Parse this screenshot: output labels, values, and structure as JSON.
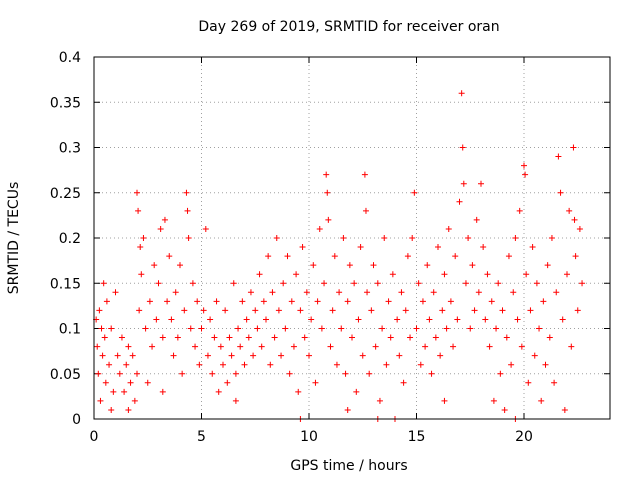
{
  "chart_data": {
    "type": "scatter",
    "title": "Day 269 of 2019, SRMTID for receiver oran",
    "xlabel": "GPS time / hours",
    "ylabel": "SRMTID / TECUs",
    "xlim": [
      0,
      24
    ],
    "ylim": [
      0,
      0.4
    ],
    "xticks": [
      0,
      5,
      10,
      15,
      20
    ],
    "xtick_labels": [
      "0",
      "5",
      "10",
      "15",
      "20"
    ],
    "yticks": [
      0,
      0.05,
      0.1,
      0.15,
      0.2,
      0.25,
      0.3,
      0.35,
      0.4
    ],
    "ytick_labels": [
      "0",
      "0.05",
      "0.1",
      "0.15",
      "0.2",
      "0.25",
      "0.3",
      "0.35",
      "0.4"
    ],
    "grid": true,
    "marker": "+",
    "color": "#ff0000",
    "series": [
      {
        "name": "SRMTID",
        "points": [
          [
            0.1,
            0.11
          ],
          [
            0.15,
            0.08
          ],
          [
            0.2,
            0.05
          ],
          [
            0.25,
            0.12
          ],
          [
            0.3,
            0.02
          ],
          [
            0.35,
            0.1
          ],
          [
            0.4,
            0.07
          ],
          [
            0.45,
            0.15
          ],
          [
            0.5,
            0.09
          ],
          [
            0.55,
            0.04
          ],
          [
            0.6,
            0.13
          ],
          [
            0.7,
            0.06
          ],
          [
            0.8,
            0.1
          ],
          [
            0.9,
            0.03
          ],
          [
            1.0,
            0.14
          ],
          [
            1.1,
            0.07
          ],
          [
            1.2,
            0.05
          ],
          [
            1.3,
            0.09
          ],
          [
            1.4,
            0.03
          ],
          [
            1.5,
            0.06
          ],
          [
            1.6,
            0.08
          ],
          [
            1.7,
            0.04
          ],
          [
            1.8,
            0.07
          ],
          [
            1.9,
            0.02
          ],
          [
            2.0,
            0.05
          ],
          [
            2.0,
            0.25
          ],
          [
            2.05,
            0.23
          ],
          [
            2.1,
            0.12
          ],
          [
            2.15,
            0.19
          ],
          [
            2.2,
            0.16
          ],
          [
            2.3,
            0.2
          ],
          [
            2.4,
            0.1
          ],
          [
            2.5,
            0.04
          ],
          [
            2.6,
            0.13
          ],
          [
            2.7,
            0.08
          ],
          [
            2.8,
            0.17
          ],
          [
            2.9,
            0.11
          ],
          [
            3.0,
            0.15
          ],
          [
            3.1,
            0.21
          ],
          [
            3.2,
            0.09
          ],
          [
            3.3,
            0.22
          ],
          [
            3.4,
            0.13
          ],
          [
            3.5,
            0.18
          ],
          [
            3.6,
            0.11
          ],
          [
            3.7,
            0.07
          ],
          [
            3.8,
            0.14
          ],
          [
            3.9,
            0.09
          ],
          [
            4.0,
            0.17
          ],
          [
            4.1,
            0.05
          ],
          [
            4.2,
            0.12
          ],
          [
            4.3,
            0.25
          ],
          [
            4.35,
            0.23
          ],
          [
            4.4,
            0.2
          ],
          [
            4.5,
            0.1
          ],
          [
            4.6,
            0.15
          ],
          [
            4.7,
            0.08
          ],
          [
            4.8,
            0.13
          ],
          [
            4.9,
            0.06
          ],
          [
            5.0,
            0.1
          ],
          [
            5.1,
            0.12
          ],
          [
            5.2,
            0.21
          ],
          [
            5.3,
            0.07
          ],
          [
            5.4,
            0.11
          ],
          [
            5.5,
            0.05
          ],
          [
            5.6,
            0.09
          ],
          [
            5.7,
            0.13
          ],
          [
            5.8,
            0.03
          ],
          [
            5.9,
            0.08
          ],
          [
            6.0,
            0.06
          ],
          [
            6.1,
            0.12
          ],
          [
            6.2,
            0.04
          ],
          [
            6.3,
            0.09
          ],
          [
            6.4,
            0.07
          ],
          [
            6.5,
            0.15
          ],
          [
            6.6,
            0.05
          ],
          [
            6.7,
            0.1
          ],
          [
            6.8,
            0.08
          ],
          [
            6.9,
            0.13
          ],
          [
            7.0,
            0.06
          ],
          [
            7.1,
            0.11
          ],
          [
            7.2,
            0.09
          ],
          [
            7.3,
            0.14
          ],
          [
            7.4,
            0.07
          ],
          [
            7.5,
            0.12
          ],
          [
            7.6,
            0.1
          ],
          [
            7.7,
            0.16
          ],
          [
            7.8,
            0.08
          ],
          [
            7.9,
            0.13
          ],
          [
            8.0,
            0.11
          ],
          [
            8.1,
            0.18
          ],
          [
            8.2,
            0.06
          ],
          [
            8.3,
            0.14
          ],
          [
            8.4,
            0.09
          ],
          [
            8.5,
            0.2
          ],
          [
            8.6,
            0.12
          ],
          [
            8.7,
            0.07
          ],
          [
            8.8,
            0.15
          ],
          [
            8.9,
            0.1
          ],
          [
            9.0,
            0.18
          ],
          [
            9.1,
            0.05
          ],
          [
            9.2,
            0.13
          ],
          [
            9.3,
            0.08
          ],
          [
            9.4,
            0.16
          ],
          [
            9.5,
            0.03
          ],
          [
            9.6,
            0.12
          ],
          [
            9.7,
            0.19
          ],
          [
            9.8,
            0.09
          ],
          [
            9.9,
            0.14
          ],
          [
            10.0,
            0.07
          ],
          [
            10.1,
            0.11
          ],
          [
            10.2,
            0.17
          ],
          [
            10.3,
            0.04
          ],
          [
            10.4,
            0.13
          ],
          [
            10.5,
            0.21
          ],
          [
            10.6,
            0.1
          ],
          [
            10.7,
            0.15
          ],
          [
            10.8,
            0.27
          ],
          [
            10.85,
            0.25
          ],
          [
            10.9,
            0.22
          ],
          [
            11.0,
            0.08
          ],
          [
            11.1,
            0.12
          ],
          [
            11.2,
            0.18
          ],
          [
            11.3,
            0.06
          ],
          [
            11.4,
            0.14
          ],
          [
            11.5,
            0.1
          ],
          [
            11.6,
            0.2
          ],
          [
            11.7,
            0.05
          ],
          [
            11.8,
            0.13
          ],
          [
            11.9,
            0.17
          ],
          [
            12.0,
            0.09
          ],
          [
            12.1,
            0.15
          ],
          [
            12.2,
            0.03
          ],
          [
            12.3,
            0.11
          ],
          [
            12.4,
            0.19
          ],
          [
            12.5,
            0.07
          ],
          [
            12.6,
            0.27
          ],
          [
            12.65,
            0.23
          ],
          [
            12.7,
            0.14
          ],
          [
            12.8,
            0.05
          ],
          [
            12.9,
            0.12
          ],
          [
            13.0,
            0.17
          ],
          [
            13.1,
            0.08
          ],
          [
            13.2,
            0.15
          ],
          [
            13.3,
            0.02
          ],
          [
            13.4,
            0.1
          ],
          [
            13.5,
            0.2
          ],
          [
            13.6,
            0.06
          ],
          [
            13.7,
            0.13
          ],
          [
            13.8,
            0.09
          ],
          [
            13.9,
            0.16
          ],
          [
            14.0,
            0.0
          ],
          [
            14.1,
            0.11
          ],
          [
            14.2,
            0.07
          ],
          [
            14.3,
            0.14
          ],
          [
            14.4,
            0.04
          ],
          [
            14.5,
            0.12
          ],
          [
            14.6,
            0.18
          ],
          [
            14.7,
            0.09
          ],
          [
            14.8,
            0.2
          ],
          [
            14.9,
            0.25
          ],
          [
            15.0,
            0.1
          ],
          [
            15.1,
            0.15
          ],
          [
            15.2,
            0.06
          ],
          [
            15.3,
            0.13
          ],
          [
            15.4,
            0.08
          ],
          [
            15.5,
            0.17
          ],
          [
            15.6,
            0.11
          ],
          [
            15.7,
            0.05
          ],
          [
            15.8,
            0.14
          ],
          [
            15.9,
            0.09
          ],
          [
            16.0,
            0.19
          ],
          [
            16.1,
            0.07
          ],
          [
            16.2,
            0.12
          ],
          [
            16.3,
            0.16
          ],
          [
            16.4,
            0.1
          ],
          [
            16.5,
            0.21
          ],
          [
            16.6,
            0.13
          ],
          [
            16.7,
            0.08
          ],
          [
            16.8,
            0.18
          ],
          [
            16.9,
            0.11
          ],
          [
            17.0,
            0.24
          ],
          [
            17.1,
            0.36
          ],
          [
            17.15,
            0.3
          ],
          [
            17.2,
            0.26
          ],
          [
            17.3,
            0.15
          ],
          [
            17.4,
            0.2
          ],
          [
            17.5,
            0.1
          ],
          [
            17.6,
            0.17
          ],
          [
            17.7,
            0.12
          ],
          [
            17.8,
            0.22
          ],
          [
            17.9,
            0.14
          ],
          [
            18.0,
            0.26
          ],
          [
            18.1,
            0.19
          ],
          [
            18.2,
            0.11
          ],
          [
            18.3,
            0.16
          ],
          [
            18.4,
            0.08
          ],
          [
            18.5,
            0.13
          ],
          [
            18.6,
            0.02
          ],
          [
            18.7,
            0.1
          ],
          [
            18.8,
            0.15
          ],
          [
            18.9,
            0.05
          ],
          [
            19.0,
            0.12
          ],
          [
            19.1,
            0.01
          ],
          [
            19.2,
            0.09
          ],
          [
            19.3,
            0.18
          ],
          [
            19.4,
            0.06
          ],
          [
            19.5,
            0.14
          ],
          [
            19.6,
            0.2
          ],
          [
            19.7,
            0.11
          ],
          [
            19.8,
            0.23
          ],
          [
            19.9,
            0.08
          ],
          [
            20.0,
            0.28
          ],
          [
            20.05,
            0.27
          ],
          [
            20.1,
            0.16
          ],
          [
            20.2,
            0.04
          ],
          [
            20.3,
            0.12
          ],
          [
            20.4,
            0.19
          ],
          [
            20.5,
            0.07
          ],
          [
            20.6,
            0.15
          ],
          [
            20.7,
            0.1
          ],
          [
            20.8,
            0.02
          ],
          [
            20.9,
            0.13
          ],
          [
            21.0,
            0.06
          ],
          [
            21.1,
            0.17
          ],
          [
            21.2,
            0.09
          ],
          [
            21.3,
            0.2
          ],
          [
            21.4,
            0.04
          ],
          [
            21.5,
            0.14
          ],
          [
            21.6,
            0.29
          ],
          [
            21.7,
            0.25
          ],
          [
            21.8,
            0.11
          ],
          [
            21.9,
            0.01
          ],
          [
            22.0,
            0.16
          ],
          [
            22.1,
            0.23
          ],
          [
            22.2,
            0.08
          ],
          [
            22.3,
            0.3
          ],
          [
            22.35,
            0.22
          ],
          [
            22.4,
            0.18
          ],
          [
            22.5,
            0.12
          ],
          [
            22.6,
            0.21
          ],
          [
            22.7,
            0.15
          ],
          [
            0.8,
            0.01
          ],
          [
            1.6,
            0.01
          ],
          [
            3.2,
            0.03
          ],
          [
            6.6,
            0.02
          ],
          [
            9.6,
            0.0
          ],
          [
            11.8,
            0.01
          ],
          [
            13.2,
            0.0
          ],
          [
            16.3,
            0.02
          ],
          [
            19.6,
            0.0
          ]
        ]
      }
    ]
  }
}
